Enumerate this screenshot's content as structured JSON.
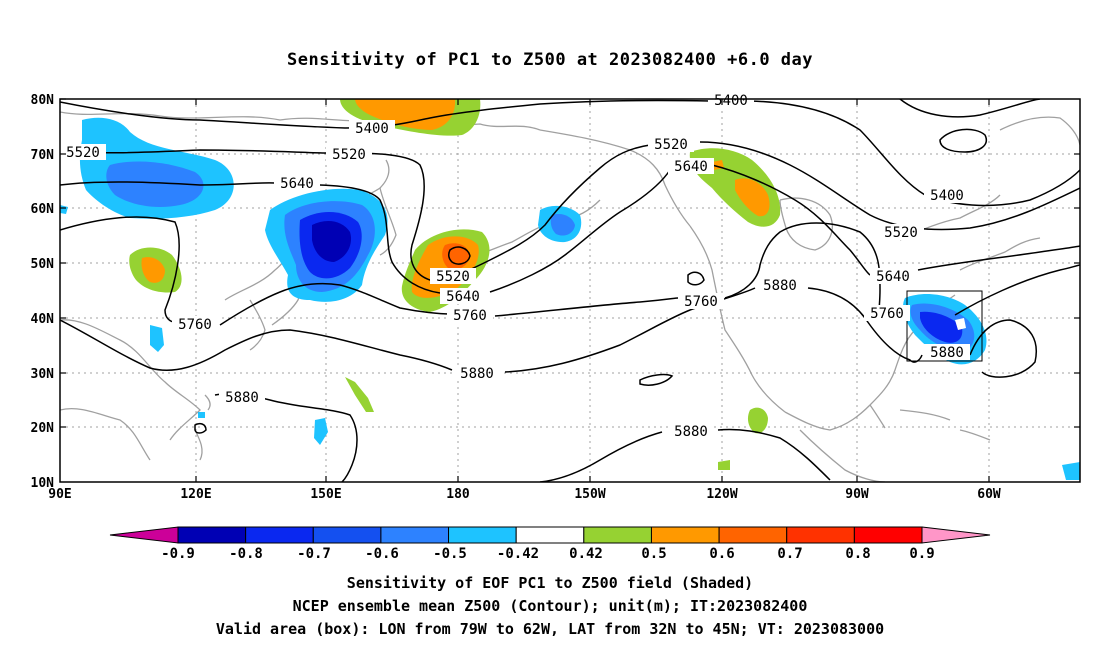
{
  "title": "Sensitivity of PC1 to Z500 at 2023082400 +6.0 day",
  "lat_labels": [
    "80N",
    "70N",
    "60N",
    "50N",
    "40N",
    "30N",
    "20N",
    "10N"
  ],
  "lon_labels": [
    "90E",
    "120E",
    "150E",
    "180",
    "150W",
    "120W",
    "90W",
    "60W"
  ],
  "contour_labels": [
    "5400",
    "5400",
    "5400",
    "5520",
    "5520",
    "5520",
    "5520",
    "5520",
    "5640",
    "5640",
    "5640",
    "5640",
    "5760",
    "5760",
    "5760",
    "5760",
    "5880",
    "5880",
    "5880",
    "5880",
    "5880"
  ],
  "colorbar": {
    "labels": [
      "-0.9",
      "-0.8",
      "-0.7",
      "-0.6",
      "-0.5",
      "-0.42",
      "0.42",
      "0.5",
      "0.6",
      "0.7",
      "0.8",
      "0.9"
    ],
    "colors": [
      "#cc0099",
      "#0000b4",
      "#0a28f0",
      "#1450f0",
      "#2d82ff",
      "#1ec3ff",
      "#ffffff",
      "#96d232",
      "#ff9900",
      "#ff6400",
      "#ff3200",
      "#ff0000",
      "#ff96c8"
    ]
  },
  "captions": {
    "line1": "Sensitivity of EOF PC1 to Z500 field (Shaded)",
    "line2": "NCEP ensemble mean Z500 (Contour); unit(m); IT:2023082400",
    "line3": "Valid area (box): LON from 79W to 62W, LAT from 32N to 45N; VT: 2023083000"
  }
}
